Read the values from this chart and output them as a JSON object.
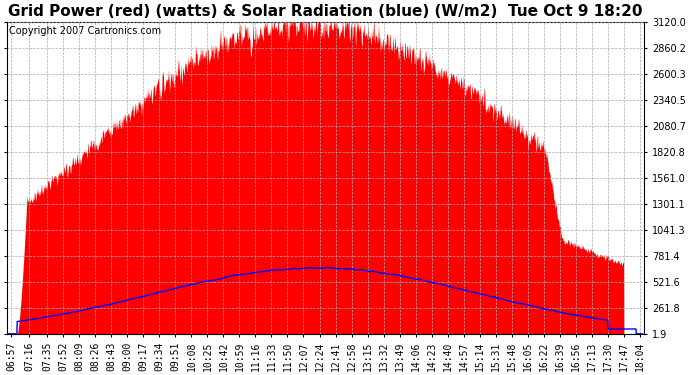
{
  "title": "Grid Power (red) (watts) & Solar Radiation (blue) (W/m2)  Tue Oct 9 18:20",
  "copyright_text": "Copyright 2007 Cartronics.com",
  "y_min": 1.9,
  "y_max": 3120.0,
  "y_ticks": [
    1.9,
    261.8,
    521.6,
    781.4,
    1041.3,
    1301.1,
    1561.0,
    1820.8,
    2080.7,
    2340.5,
    2600.3,
    2860.2,
    3120.0
  ],
  "x_labels": [
    "06:57",
    "07:16",
    "07:35",
    "07:52",
    "08:09",
    "08:26",
    "08:43",
    "09:00",
    "09:17",
    "09:34",
    "09:51",
    "10:08",
    "10:25",
    "10:42",
    "10:59",
    "11:16",
    "11:33",
    "11:50",
    "12:07",
    "12:24",
    "12:41",
    "12:58",
    "13:15",
    "13:32",
    "13:49",
    "14:06",
    "14:23",
    "14:40",
    "14:57",
    "15:14",
    "15:31",
    "15:48",
    "16:05",
    "16:22",
    "16:39",
    "16:56",
    "17:13",
    "17:30",
    "17:47",
    "18:04"
  ],
  "background_color": "#ffffff",
  "plot_bg_color": "#ffffff",
  "grid_color": "#aaaaaa",
  "fill_color_red": "#ff0000",
  "line_color_blue": "#0000ff",
  "title_fontsize": 11,
  "tick_fontsize": 7,
  "copyright_fontsize": 7,
  "solar_peak": 660,
  "solar_noon": 12.35,
  "solar_sigma": 2.9,
  "grid_peak": 3100,
  "grid_noon": 12.1,
  "grid_sigma_rise": 2.2,
  "grid_sigma_fall": 2.5
}
